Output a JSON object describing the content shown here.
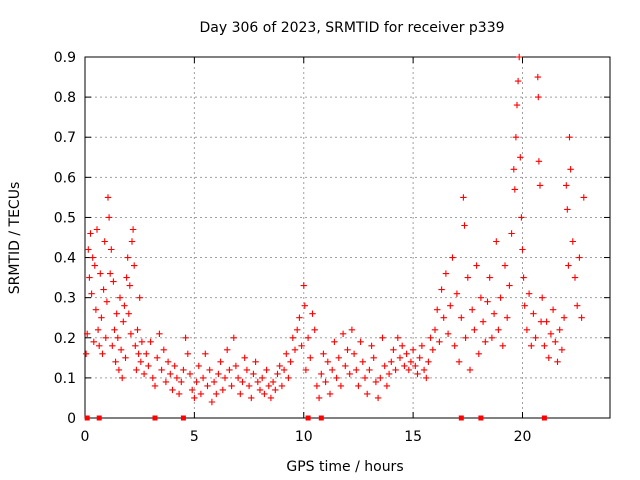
{
  "chart_data": {
    "type": "scatter",
    "title": "Day 306 of 2023, SRMTID for receiver p339",
    "xlabel": "GPS time / hours",
    "ylabel": "SRMTID / TECUs",
    "xlim": [
      0,
      24
    ],
    "ylim": [
      0,
      0.9
    ],
    "xticks": [
      0,
      5,
      10,
      15,
      20
    ],
    "yticks": [
      0,
      0.1,
      0.2,
      0.3,
      0.4,
      0.5,
      0.6,
      0.7,
      0.8,
      0.9
    ],
    "grid": true,
    "marker": "+",
    "color": "#ff0000",
    "series": [
      {
        "name": "SRMTID",
        "points": [
          [
            0.05,
            0.16
          ],
          [
            0.1,
            0.21
          ],
          [
            0.15,
            0.42
          ],
          [
            0.2,
            0.35
          ],
          [
            0.25,
            0.46
          ],
          [
            0.3,
            0.31
          ],
          [
            0.35,
            0.4
          ],
          [
            0.4,
            0.19
          ],
          [
            0.45,
            0.38
          ],
          [
            0.5,
            0.27
          ],
          [
            0.55,
            0.47
          ],
          [
            0.6,
            0.22
          ],
          [
            0.65,
            0.18
          ],
          [
            0.7,
            0.36
          ],
          [
            0.75,
            0.25
          ],
          [
            0.8,
            0.16
          ],
          [
            0.85,
            0.32
          ],
          [
            0.9,
            0.44
          ],
          [
            0.95,
            0.2
          ],
          [
            1.0,
            0.29
          ],
          [
            1.05,
            0.55
          ],
          [
            1.1,
            0.5
          ],
          [
            1.15,
            0.36
          ],
          [
            1.2,
            0.42
          ],
          [
            1.25,
            0.18
          ],
          [
            1.3,
            0.34
          ],
          [
            1.35,
            0.22
          ],
          [
            1.4,
            0.14
          ],
          [
            1.45,
            0.26
          ],
          [
            1.5,
            0.2
          ],
          [
            1.55,
            0.12
          ],
          [
            1.6,
            0.3
          ],
          [
            1.65,
            0.17
          ],
          [
            1.7,
            0.1
          ],
          [
            1.75,
            0.24
          ],
          [
            1.8,
            0.28
          ],
          [
            1.85,
            0.15
          ],
          [
            1.9,
            0.35
          ],
          [
            1.95,
            0.4
          ],
          [
            2.0,
            0.26
          ],
          [
            2.05,
            0.33
          ],
          [
            2.1,
            0.21
          ],
          [
            2.15,
            0.44
          ],
          [
            2.2,
            0.47
          ],
          [
            2.25,
            0.38
          ],
          [
            2.3,
            0.18
          ],
          [
            2.35,
            0.12
          ],
          [
            2.4,
            0.22
          ],
          [
            2.45,
            0.16
          ],
          [
            2.5,
            0.3
          ],
          [
            2.55,
            0.14
          ],
          [
            2.6,
            0.19
          ],
          [
            2.7,
            0.11
          ],
          [
            2.8,
            0.16
          ],
          [
            2.9,
            0.13
          ],
          [
            3.0,
            0.19
          ],
          [
            3.1,
            0.1
          ],
          [
            3.2,
            0.08
          ],
          [
            3.3,
            0.15
          ],
          [
            3.4,
            0.21
          ],
          [
            3.5,
            0.12
          ],
          [
            3.6,
            0.17
          ],
          [
            3.7,
            0.09
          ],
          [
            3.8,
            0.14
          ],
          [
            3.9,
            0.11
          ],
          [
            4.0,
            0.07
          ],
          [
            4.1,
            0.13
          ],
          [
            4.2,
            0.1
          ],
          [
            4.3,
            0.06
          ],
          [
            4.4,
            0.09
          ],
          [
            4.5,
            0.12
          ],
          [
            4.6,
            0.2
          ],
          [
            4.7,
            0.16
          ],
          [
            4.8,
            0.11
          ],
          [
            4.9,
            0.07
          ],
          [
            5.0,
            0.05
          ],
          [
            5.1,
            0.09
          ],
          [
            5.2,
            0.13
          ],
          [
            5.3,
            0.06
          ],
          [
            5.4,
            0.1
          ],
          [
            5.5,
            0.16
          ],
          [
            5.6,
            0.08
          ],
          [
            5.7,
            0.12
          ],
          [
            5.8,
            0.04
          ],
          [
            5.9,
            0.09
          ],
          [
            6.0,
            0.06
          ],
          [
            6.1,
            0.11
          ],
          [
            6.2,
            0.14
          ],
          [
            6.3,
            0.07
          ],
          [
            6.4,
            0.1
          ],
          [
            6.5,
            0.17
          ],
          [
            6.6,
            0.12
          ],
          [
            6.7,
            0.08
          ],
          [
            6.8,
            0.2
          ],
          [
            6.9,
            0.13
          ],
          [
            7.0,
            0.1
          ],
          [
            7.1,
            0.06
          ],
          [
            7.2,
            0.09
          ],
          [
            7.3,
            0.15
          ],
          [
            7.4,
            0.12
          ],
          [
            7.5,
            0.08
          ],
          [
            7.6,
            0.05
          ],
          [
            7.7,
            0.11
          ],
          [
            7.8,
            0.14
          ],
          [
            7.9,
            0.09
          ],
          [
            8.0,
            0.07
          ],
          [
            8.1,
            0.1
          ],
          [
            8.2,
            0.06
          ],
          [
            8.3,
            0.12
          ],
          [
            8.4,
            0.08
          ],
          [
            8.5,
            0.05
          ],
          [
            8.6,
            0.09
          ],
          [
            8.7,
            0.07
          ],
          [
            8.8,
            0.11
          ],
          [
            8.9,
            0.13
          ],
          [
            9.0,
            0.08
          ],
          [
            9.1,
            0.12
          ],
          [
            9.2,
            0.16
          ],
          [
            9.3,
            0.1
          ],
          [
            9.4,
            0.14
          ],
          [
            9.5,
            0.2
          ],
          [
            9.6,
            0.17
          ],
          [
            9.7,
            0.22
          ],
          [
            9.8,
            0.25
          ],
          [
            9.9,
            0.18
          ],
          [
            10.0,
            0.33
          ],
          [
            10.05,
            0.28
          ],
          [
            10.1,
            0.12
          ],
          [
            10.2,
            0.2
          ],
          [
            10.3,
            0.15
          ],
          [
            10.4,
            0.26
          ],
          [
            10.5,
            0.22
          ],
          [
            10.6,
            0.08
          ],
          [
            10.7,
            0.05
          ],
          [
            10.8,
            0.11
          ],
          [
            10.9,
            0.16
          ],
          [
            11.0,
            0.09
          ],
          [
            11.1,
            0.14
          ],
          [
            11.2,
            0.06
          ],
          [
            11.3,
            0.12
          ],
          [
            11.4,
            0.19
          ],
          [
            11.5,
            0.1
          ],
          [
            11.6,
            0.15
          ],
          [
            11.7,
            0.08
          ],
          [
            11.8,
            0.21
          ],
          [
            11.9,
            0.13
          ],
          [
            12.0,
            0.17
          ],
          [
            12.1,
            0.11
          ],
          [
            12.2,
            0.22
          ],
          [
            12.3,
            0.16
          ],
          [
            12.4,
            0.12
          ],
          [
            12.5,
            0.08
          ],
          [
            12.6,
            0.19
          ],
          [
            12.7,
            0.14
          ],
          [
            12.8,
            0.1
          ],
          [
            12.9,
            0.06
          ],
          [
            13.0,
            0.12
          ],
          [
            13.1,
            0.18
          ],
          [
            13.2,
            0.15
          ],
          [
            13.3,
            0.09
          ],
          [
            13.4,
            0.05
          ],
          [
            13.5,
            0.1
          ],
          [
            13.6,
            0.2
          ],
          [
            13.7,
            0.13
          ],
          [
            13.8,
            0.08
          ],
          [
            13.9,
            0.11
          ],
          [
            14.0,
            0.14
          ],
          [
            14.1,
            0.17
          ],
          [
            14.2,
            0.12
          ],
          [
            14.3,
            0.2
          ],
          [
            14.4,
            0.15
          ],
          [
            14.5,
            0.18
          ],
          [
            14.6,
            0.13
          ],
          [
            14.7,
            0.16
          ],
          [
            14.8,
            0.12
          ],
          [
            14.9,
            0.14
          ],
          [
            15.0,
            0.17
          ],
          [
            15.1,
            0.13
          ],
          [
            15.2,
            0.11
          ],
          [
            15.3,
            0.15
          ],
          [
            15.4,
            0.18
          ],
          [
            15.5,
            0.12
          ],
          [
            15.6,
            0.1
          ],
          [
            15.7,
            0.14
          ],
          [
            15.8,
            0.2
          ],
          [
            15.9,
            0.17
          ],
          [
            16.0,
            0.22
          ],
          [
            16.1,
            0.27
          ],
          [
            16.2,
            0.19
          ],
          [
            16.3,
            0.32
          ],
          [
            16.4,
            0.25
          ],
          [
            16.5,
            0.36
          ],
          [
            16.6,
            0.21
          ],
          [
            16.7,
            0.28
          ],
          [
            16.8,
            0.4
          ],
          [
            16.9,
            0.18
          ],
          [
            17.0,
            0.31
          ],
          [
            17.1,
            0.14
          ],
          [
            17.2,
            0.25
          ],
          [
            17.3,
            0.55
          ],
          [
            17.35,
            0.48
          ],
          [
            17.4,
            0.2
          ],
          [
            17.5,
            0.35
          ],
          [
            17.6,
            0.12
          ],
          [
            17.7,
            0.27
          ],
          [
            17.8,
            0.22
          ],
          [
            17.9,
            0.38
          ],
          [
            18.0,
            0.16
          ],
          [
            18.1,
            0.3
          ],
          [
            18.2,
            0.24
          ],
          [
            18.3,
            0.19
          ],
          [
            18.4,
            0.29
          ],
          [
            18.5,
            0.35
          ],
          [
            18.6,
            0.2
          ],
          [
            18.7,
            0.26
          ],
          [
            18.8,
            0.44
          ],
          [
            18.9,
            0.22
          ],
          [
            19.0,
            0.3
          ],
          [
            19.1,
            0.18
          ],
          [
            19.2,
            0.38
          ],
          [
            19.3,
            0.25
          ],
          [
            19.4,
            0.33
          ],
          [
            19.5,
            0.46
          ],
          [
            19.6,
            0.62
          ],
          [
            19.65,
            0.57
          ],
          [
            19.7,
            0.7
          ],
          [
            19.75,
            0.78
          ],
          [
            19.8,
            0.84
          ],
          [
            19.85,
            0.9
          ],
          [
            19.9,
            0.65
          ],
          [
            19.95,
            0.5
          ],
          [
            20.0,
            0.42
          ],
          [
            20.05,
            0.35
          ],
          [
            20.1,
            0.28
          ],
          [
            20.2,
            0.22
          ],
          [
            20.3,
            0.31
          ],
          [
            20.4,
            0.18
          ],
          [
            20.5,
            0.26
          ],
          [
            20.6,
            0.2
          ],
          [
            20.7,
            0.85
          ],
          [
            20.72,
            0.8
          ],
          [
            20.75,
            0.64
          ],
          [
            20.8,
            0.58
          ],
          [
            20.85,
            0.24
          ],
          [
            20.9,
            0.3
          ],
          [
            21.0,
            0.18
          ],
          [
            21.1,
            0.24
          ],
          [
            21.2,
            0.15
          ],
          [
            21.3,
            0.21
          ],
          [
            21.4,
            0.27
          ],
          [
            21.5,
            0.19
          ],
          [
            21.6,
            0.14
          ],
          [
            21.7,
            0.22
          ],
          [
            21.8,
            0.17
          ],
          [
            21.9,
            0.25
          ],
          [
            22.0,
            0.58
          ],
          [
            22.05,
            0.52
          ],
          [
            22.1,
            0.38
          ],
          [
            22.15,
            0.7
          ],
          [
            22.2,
            0.62
          ],
          [
            22.3,
            0.44
          ],
          [
            22.4,
            0.35
          ],
          [
            22.5,
            0.28
          ],
          [
            22.6,
            0.4
          ],
          [
            22.7,
            0.25
          ],
          [
            22.8,
            0.55
          ]
        ]
      }
    ],
    "baseline_points_x": [
      0.1,
      0.65,
      3.2,
      4.5,
      10.2,
      10.8,
      17.2,
      18.1,
      21.0
    ]
  }
}
